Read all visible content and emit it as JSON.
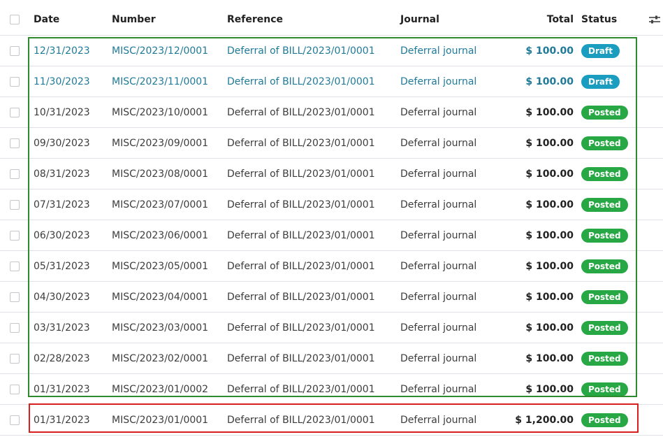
{
  "columns": {
    "date": "Date",
    "number": "Number",
    "reference": "Reference",
    "journal": "Journal",
    "total": "Total",
    "status": "Status"
  },
  "rows": [
    {
      "date": "12/31/2023",
      "number": "MISC/2023/12/0001",
      "reference": "Deferral of BILL/2023/01/0001",
      "journal": "Deferral journal",
      "total": "$ 100.00",
      "status": "Draft"
    },
    {
      "date": "11/30/2023",
      "number": "MISC/2023/11/0001",
      "reference": "Deferral of BILL/2023/01/0001",
      "journal": "Deferral journal",
      "total": "$ 100.00",
      "status": "Draft"
    },
    {
      "date": "10/31/2023",
      "number": "MISC/2023/10/0001",
      "reference": "Deferral of BILL/2023/01/0001",
      "journal": "Deferral journal",
      "total": "$ 100.00",
      "status": "Posted"
    },
    {
      "date": "09/30/2023",
      "number": "MISC/2023/09/0001",
      "reference": "Deferral of BILL/2023/01/0001",
      "journal": "Deferral journal",
      "total": "$ 100.00",
      "status": "Posted"
    },
    {
      "date": "08/31/2023",
      "number": "MISC/2023/08/0001",
      "reference": "Deferral of BILL/2023/01/0001",
      "journal": "Deferral journal",
      "total": "$ 100.00",
      "status": "Posted"
    },
    {
      "date": "07/31/2023",
      "number": "MISC/2023/07/0001",
      "reference": "Deferral of BILL/2023/01/0001",
      "journal": "Deferral journal",
      "total": "$ 100.00",
      "status": "Posted"
    },
    {
      "date": "06/30/2023",
      "number": "MISC/2023/06/0001",
      "reference": "Deferral of BILL/2023/01/0001",
      "journal": "Deferral journal",
      "total": "$ 100.00",
      "status": "Posted"
    },
    {
      "date": "05/31/2023",
      "number": "MISC/2023/05/0001",
      "reference": "Deferral of BILL/2023/01/0001",
      "journal": "Deferral journal",
      "total": "$ 100.00",
      "status": "Posted"
    },
    {
      "date": "04/30/2023",
      "number": "MISC/2023/04/0001",
      "reference": "Deferral of BILL/2023/01/0001",
      "journal": "Deferral journal",
      "total": "$ 100.00",
      "status": "Posted"
    },
    {
      "date": "03/31/2023",
      "number": "MISC/2023/03/0001",
      "reference": "Deferral of BILL/2023/01/0001",
      "journal": "Deferral journal",
      "total": "$ 100.00",
      "status": "Posted"
    },
    {
      "date": "02/28/2023",
      "number": "MISC/2023/02/0001",
      "reference": "Deferral of BILL/2023/01/0001",
      "journal": "Deferral journal",
      "total": "$ 100.00",
      "status": "Posted"
    },
    {
      "date": "01/31/2023",
      "number": "MISC/2023/01/0002",
      "reference": "Deferral of BILL/2023/01/0001",
      "journal": "Deferral journal",
      "total": "$ 100.00",
      "status": "Posted"
    },
    {
      "date": "01/31/2023",
      "number": "MISC/2023/01/0001",
      "reference": "Deferral of BILL/2023/01/0001",
      "journal": "Deferral journal",
      "total": "$ 1,200.00",
      "status": "Posted"
    }
  ],
  "colors": {
    "draft_text": "#1f7a99",
    "draft_badge": "#1a9dbf",
    "posted_badge": "#28a745",
    "highlight_green": "#2e8b2e",
    "highlight_red": "#d91e1e"
  },
  "icons": {
    "column_options": "sliders-icon"
  }
}
